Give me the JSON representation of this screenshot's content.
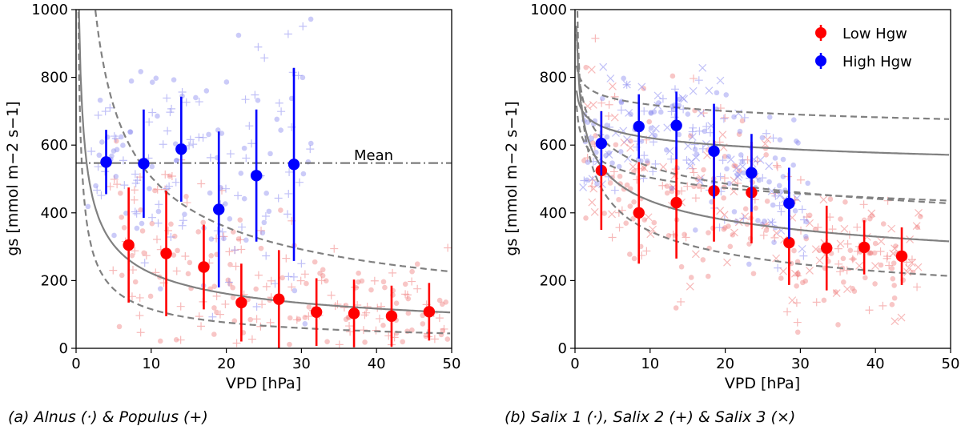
{
  "chart_data": [
    {
      "type": "scatter",
      "panel": "a",
      "caption": "(a) Alnus (·) & Populus (+)",
      "xlabel": "VPD [hPa]",
      "ylabel": "gs [mmol m−2 s−1]",
      "xlim": [
        0,
        50
      ],
      "ylim": [
        0,
        1000
      ],
      "xticks": [
        0,
        10,
        20,
        30,
        40,
        50
      ],
      "yticks": [
        0,
        200,
        400,
        600,
        800,
        1000
      ],
      "mean_line": {
        "label": "Mean",
        "value": 547
      },
      "fit_curves": {
        "low_fit": {
          "a": 640,
          "b": 0.46
        },
        "low_band_upper": {
          "a": 1600,
          "b": 0.5
        },
        "low_band_lower": {
          "a": 460,
          "b": 0.6
        }
      },
      "series": [
        {
          "name": "Low Hgw",
          "color": "#ff0000",
          "x": [
            7,
            12,
            17,
            22,
            27,
            32,
            37,
            42,
            47
          ],
          "y": [
            305,
            280,
            240,
            135,
            145,
            107,
            103,
            95,
            108
          ],
          "err": [
            170,
            185,
            125,
            115,
            145,
            100,
            100,
            90,
            85
          ]
        },
        {
          "name": "High Hgw",
          "color": "#0000ff",
          "x": [
            4,
            9,
            14,
            19,
            24,
            29
          ],
          "y": [
            550,
            545,
            588,
            410,
            510,
            543
          ],
          "err": [
            95,
            160,
            155,
            230,
            195,
            285
          ]
        }
      ]
    },
    {
      "type": "scatter",
      "panel": "b",
      "caption": "(b) Salix 1 (·), Salix 2 (+) & Salix 3 (×)",
      "xlabel": "VPD [hPa]",
      "ylabel": "gs [mmol m−2 s−1]",
      "xlim": [
        0,
        50
      ],
      "ylim": [
        0,
        1000
      ],
      "xticks": [
        0,
        10,
        20,
        30,
        40,
        50
      ],
      "yticks": [
        0,
        200,
        400,
        600,
        800,
        1000
      ],
      "legend": {
        "position": "top-right",
        "entries": [
          "Low Hgw",
          "High Hgw"
        ]
      },
      "fit_curves": {
        "high_fit": {
          "a": 700,
          "b": 0.052
        },
        "high_band_upper": {
          "a": 785,
          "b": 0.038
        },
        "high_band_lower": {
          "a": 740,
          "b": 0.14
        },
        "low_fit": {
          "a": 690,
          "b": 0.2
        },
        "low_band_upper": {
          "a": 620,
          "b": 0.09
        },
        "low_band_lower": {
          "a": 690,
          "b": 0.3
        }
      },
      "series": [
        {
          "name": "Low Hgw",
          "color": "#ff0000",
          "x": [
            3.5,
            8.5,
            13.5,
            18.5,
            23.5,
            28.5,
            33.5,
            38.5,
            43.5
          ],
          "y": [
            525,
            400,
            430,
            465,
            460,
            312,
            296,
            298,
            272
          ],
          "err": [
            175,
            150,
            165,
            150,
            150,
            125,
            125,
            80,
            85
          ]
        },
        {
          "name": "High Hgw",
          "color": "#0000ff",
          "x": [
            3.5,
            8.5,
            13.5,
            18.5,
            23.5,
            28.5
          ],
          "y": [
            605,
            655,
            658,
            582,
            518,
            428
          ],
          "err": [
            95,
            95,
            100,
            140,
            115,
            105
          ]
        }
      ]
    }
  ]
}
